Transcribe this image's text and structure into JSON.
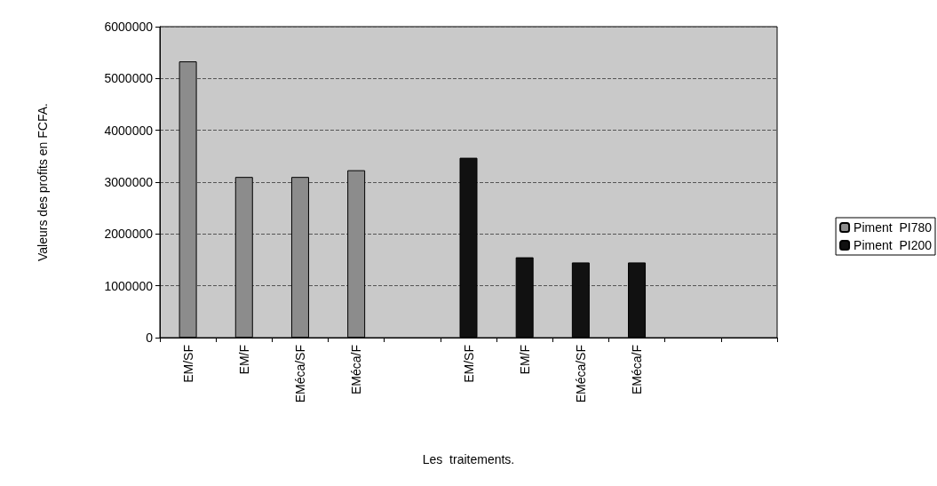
{
  "chart_data": {
    "type": "bar",
    "xlabel": "Les  traitements.",
    "ylabel": "Valeurs des profits en FCFA.",
    "categories": [
      "EM/SF",
      "EM/F",
      "EMéca/SF",
      "EMéca/F",
      null,
      "EM/SF",
      "EM/F",
      "EMéca/SF",
      "EMéca/F",
      null,
      null
    ],
    "series": [
      {
        "name": "Piment  PI780",
        "color": "#8c8c8c",
        "values": [
          5330000,
          3100000,
          3100000,
          3230000,
          null,
          null,
          null,
          null,
          null,
          null,
          null
        ]
      },
      {
        "name": "Piment  PI200",
        "color": "#111111",
        "values": [
          null,
          null,
          null,
          null,
          null,
          3470000,
          1550000,
          1450000,
          1450000,
          null,
          null
        ]
      }
    ],
    "ylim": [
      0,
      6000000
    ],
    "yticks": [
      0,
      1000000,
      2000000,
      3000000,
      4000000,
      5000000,
      6000000
    ],
    "grid": "y",
    "legend": "right"
  }
}
